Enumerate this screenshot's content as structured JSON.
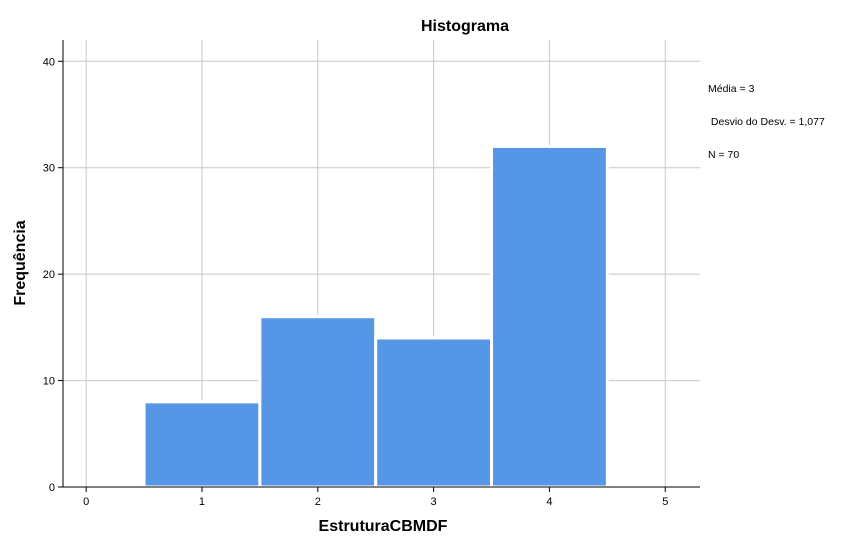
{
  "chart_data": {
    "type": "bar",
    "title": "Histograma",
    "xlabel": "EstruturaCBMDF",
    "ylabel": "Frequência",
    "x_ticks": [
      "0",
      "1",
      "2",
      "3",
      "4",
      "5"
    ],
    "y_ticks": [
      "0",
      "10",
      "20",
      "30",
      "40"
    ],
    "xlim": [
      -0.2,
      5.3
    ],
    "ylim": [
      0,
      42
    ],
    "grid": true,
    "bar_color": "#5596e6",
    "bins": [
      {
        "x": 1,
        "value": 8
      },
      {
        "x": 2,
        "value": 16
      },
      {
        "x": 3,
        "value": 14
      },
      {
        "x": 4,
        "value": 32
      }
    ],
    "stats": {
      "mean": "Média = 3",
      "std": " Desvio do Desv. = 1,077",
      "n": "N = 70"
    }
  }
}
